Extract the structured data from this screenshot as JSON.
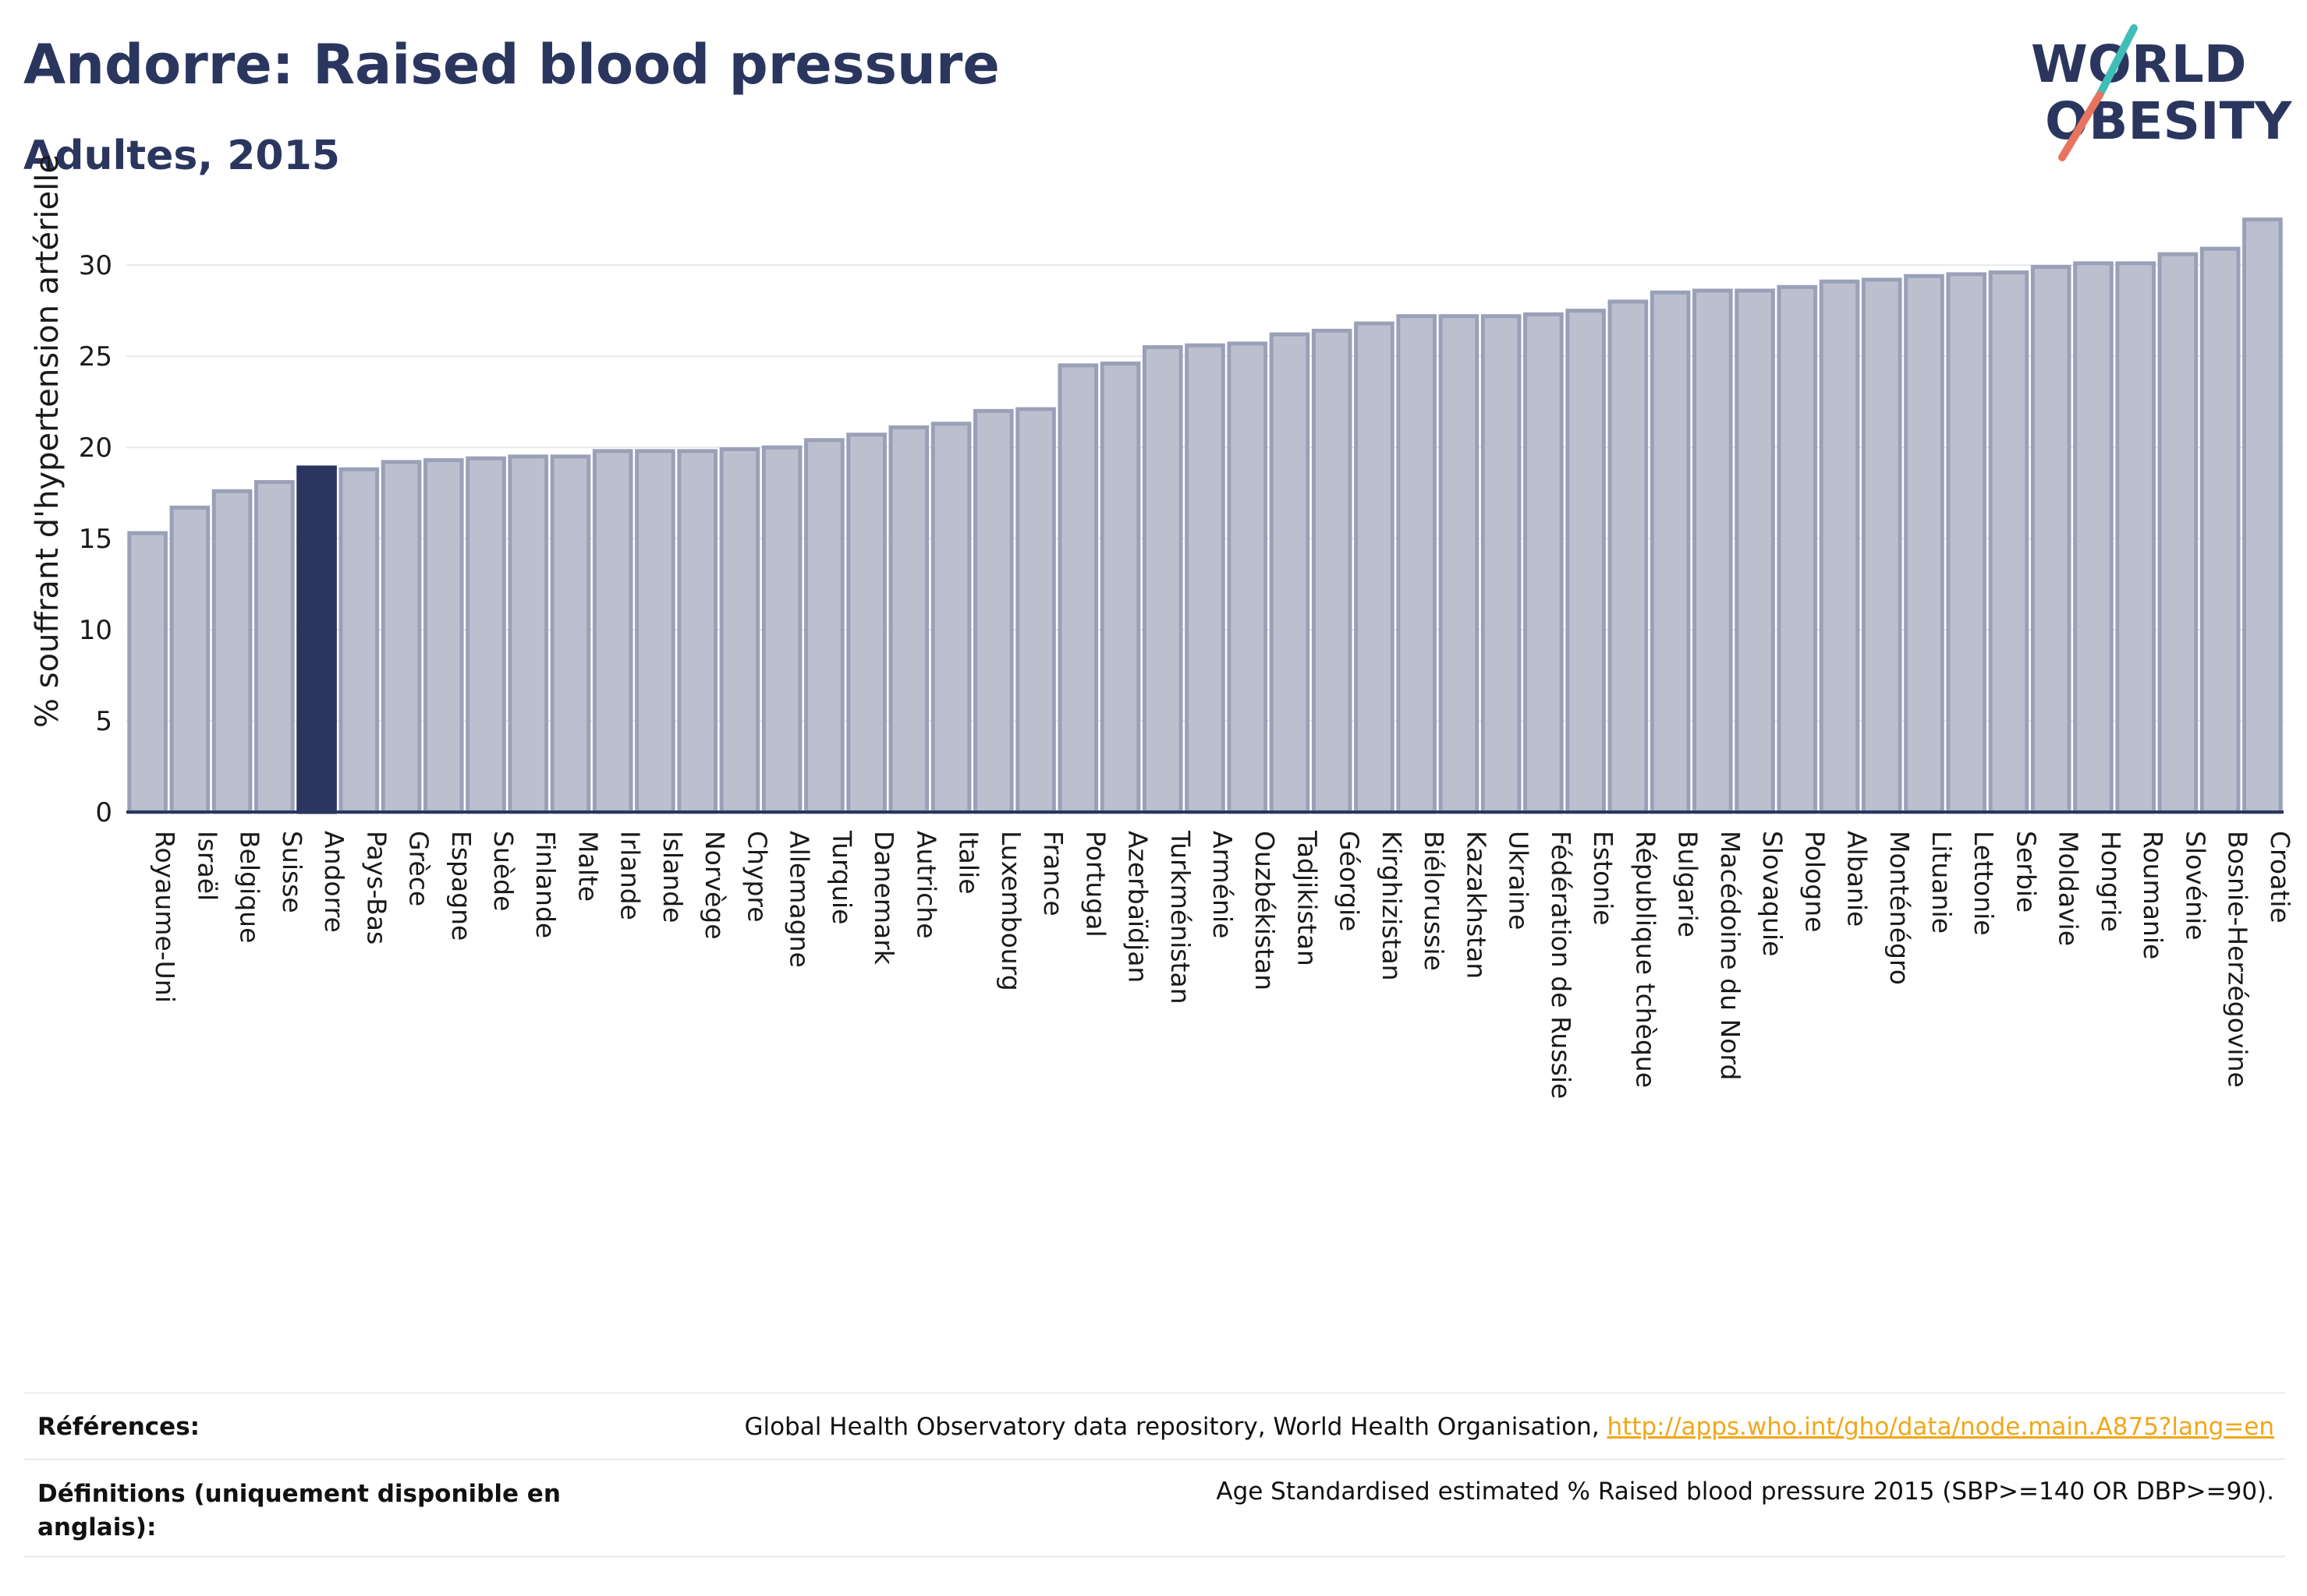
{
  "header": {
    "title": "Andorre: Raised blood pressure",
    "subtitle": "Adultes, 2015"
  },
  "logo": {
    "line1": "WORLD",
    "line2": "OBESITY",
    "colors": {
      "text": "#2b365f",
      "slash_teal": "#3fbdb7",
      "slash_coral": "#e8735f"
    }
  },
  "colors": {
    "bar_fill": "#bcc0ce",
    "bar_stroke": "#9aa0b7",
    "highlight_fill": "#2b365f",
    "axis": "#2b365f",
    "grid": "#e6e8ee"
  },
  "chart_data": {
    "type": "bar",
    "ylabel": "% souffrant d'hypertension artérielle",
    "ylim": [
      0,
      33
    ],
    "yticks": [
      0,
      5,
      10,
      15,
      20,
      25,
      30
    ],
    "grid": true,
    "highlight": "Andorre",
    "categories": [
      "Royaume-Uni",
      "Israël",
      "Belgique",
      "Suisse",
      "Andorre",
      "Pays-Bas",
      "Grèce",
      "Espagne",
      "Suède",
      "Finlande",
      "Malte",
      "Irlande",
      "Islande",
      "Norvège",
      "Chypre",
      "Allemagne",
      "Turquie",
      "Danemark",
      "Autriche",
      "Italie",
      "Luxembourg",
      "France",
      "Portugal",
      "Azerbaïdjan",
      "Turkménistan",
      "Arménie",
      "Ouzbékistan",
      "Tadjikistan",
      "Géorgie",
      "Kirghizistan",
      "Biélorussie",
      "Kazakhstan",
      "Ukraine",
      "Fédération de Russie",
      "Estonie",
      "République tchèque",
      "Bulgarie",
      "Macédoine du Nord",
      "Slovaquie",
      "Pologne",
      "Albanie",
      "Monténégro",
      "Lituanie",
      "Lettonie",
      "Serbie",
      "Moldavie",
      "Hongrie",
      "Roumanie",
      "Slovénie",
      "Bosnie-Herzégovine",
      "Croatie"
    ],
    "values": [
      15.3,
      16.7,
      17.6,
      18.1,
      18.9,
      18.8,
      19.2,
      19.3,
      19.4,
      19.5,
      19.5,
      19.8,
      19.8,
      19.8,
      19.9,
      20.0,
      20.4,
      20.7,
      21.1,
      21.3,
      22.0,
      22.1,
      24.5,
      24.6,
      25.5,
      25.6,
      25.7,
      26.2,
      26.4,
      26.8,
      27.2,
      27.2,
      27.2,
      27.3,
      27.5,
      28.0,
      28.5,
      28.6,
      28.6,
      28.8,
      29.1,
      29.2,
      29.4,
      29.5,
      29.6,
      29.9,
      30.1,
      30.1,
      30.6,
      30.9,
      32.5
    ]
  },
  "references": {
    "refs_label": "Références:",
    "refs_text": "Global Health Observatory data repository, World Health Organisation, ",
    "refs_link": "http://apps.who.int/gho/data/node.main.A875?lang=en",
    "defs_label": "Définitions (uniquement disponible en anglais):",
    "defs_text": "Age Standardised estimated % Raised blood pressure 2015 (SBP>=140 OR DBP>=90)."
  }
}
